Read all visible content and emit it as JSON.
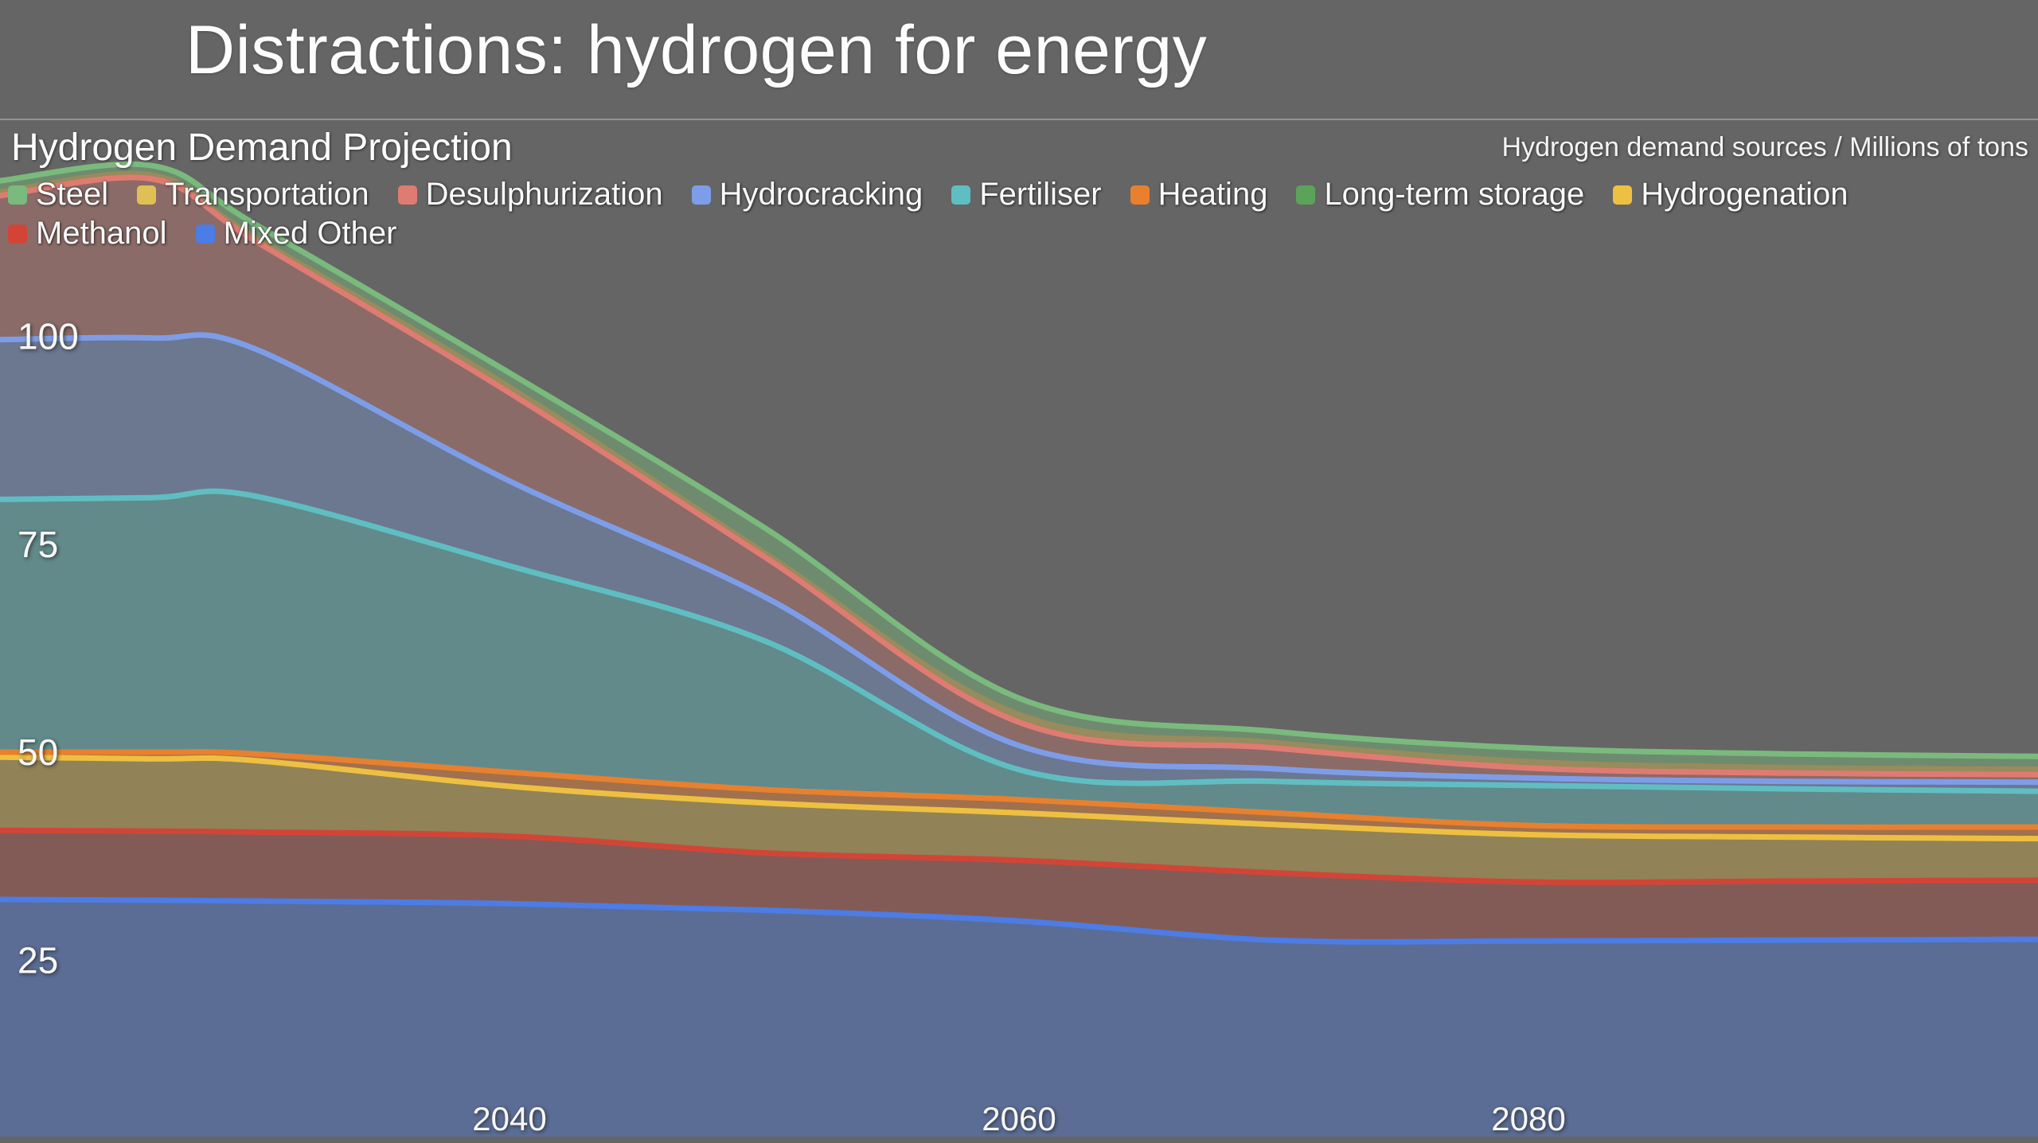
{
  "slide": {
    "title": "Distractions: hydrogen for energy"
  },
  "chart": {
    "title": "Hydrogen Demand Projection",
    "unit_label": "Hydrogen demand sources / Millions of tons"
  },
  "theme": {
    "background": "#656565",
    "text": "#f7f7f7"
  },
  "chart_data": {
    "type": "area",
    "stacked": true,
    "title": "Hydrogen Demand Projection",
    "ylabel": "Millions of tons",
    "xlabel": "",
    "grid": false,
    "legend_position": "top-left",
    "x": [
      2020,
      2026,
      2030,
      2040,
      2050,
      2060,
      2070,
      2080,
      2090,
      2100
    ],
    "x_range": [
      2020,
      2100
    ],
    "x_ticks": [
      2040,
      2060,
      2080
    ],
    "y_ticks": [
      25,
      50,
      75,
      100
    ],
    "y_axis_top": 125,
    "legend_order": [
      "Steel",
      "Transportation",
      "Desulphurization",
      "Hydrocracking",
      "Fertiliser",
      "Heating",
      "Long-term storage",
      "Hydrogenation",
      "Methanol",
      "Mixed Other"
    ],
    "series": [
      {
        "name": "Mixed Other",
        "color": "#4c7ce5",
        "fill_opacity": 0.38,
        "values": [
          32.3,
          32.2,
          32.1,
          31.8,
          31.0,
          29.7,
          27.4,
          27.3,
          27.4,
          27.5
        ]
      },
      {
        "name": "Methanol",
        "color": "#d24536",
        "fill_opacity": 0.28,
        "values": [
          8.3,
          8.3,
          8.3,
          8.1,
          6.9,
          7.3,
          8.1,
          7.1,
          7.1,
          7.1
        ]
      },
      {
        "name": "Hydrogenation",
        "color": "#eec041",
        "fill_opacity": 0.33,
        "values": [
          8.8,
          8.7,
          8.6,
          6.0,
          6.0,
          5.7,
          5.8,
          5.7,
          5.3,
          5.0
        ]
      },
      {
        "name": "Long-term storage",
        "color": "#5ba35b",
        "fill_opacity": 0,
        "line": false,
        "values": [
          0,
          0,
          0,
          0,
          0,
          0,
          0,
          0,
          0,
          0
        ]
      },
      {
        "name": "Heating",
        "color": "#e8802e",
        "fill_opacity": 0.45,
        "values": [
          0.6,
          0.8,
          0.8,
          1.7,
          1.6,
          1.6,
          1.4,
          1.1,
          1.2,
          1.4
        ]
      },
      {
        "name": "Fertiliser",
        "color": "#5fbec1",
        "fill_opacity": 0.42,
        "values": [
          30.4,
          30.6,
          31.0,
          24.8,
          17.9,
          3.6,
          3.8,
          4.8,
          4.6,
          4.3
        ]
      },
      {
        "name": "Hydrocracking",
        "color": "#7d9de9",
        "fill_opacity": 0.33,
        "values": [
          19.2,
          19.2,
          17.7,
          10.2,
          5.3,
          2.9,
          1.5,
          0.9,
          0.9,
          1.1
        ]
      },
      {
        "name": "Desulphurization",
        "color": "#e07b72",
        "fill_opacity": 0.3,
        "values": [
          17.3,
          19.1,
          13.0,
          10.6,
          4.8,
          2.8,
          2.5,
          1.2,
          1.0,
          0.9
        ]
      },
      {
        "name": "Transportation",
        "color": "#dfc054",
        "fill_opacity": 0.42,
        "line": false,
        "values": [
          0.8,
          0.8,
          0.8,
          1.1,
          0.9,
          1.3,
          1.0,
          1.1,
          1.0,
          1.0
        ]
      },
      {
        "name": "Steel",
        "color": "#7aba7d",
        "fill_opacity": 0.45,
        "values": [
          1.0,
          0.8,
          1.2,
          1.3,
          2.6,
          1.6,
          1.0,
          1.3,
          1.3,
          1.2
        ]
      }
    ]
  }
}
